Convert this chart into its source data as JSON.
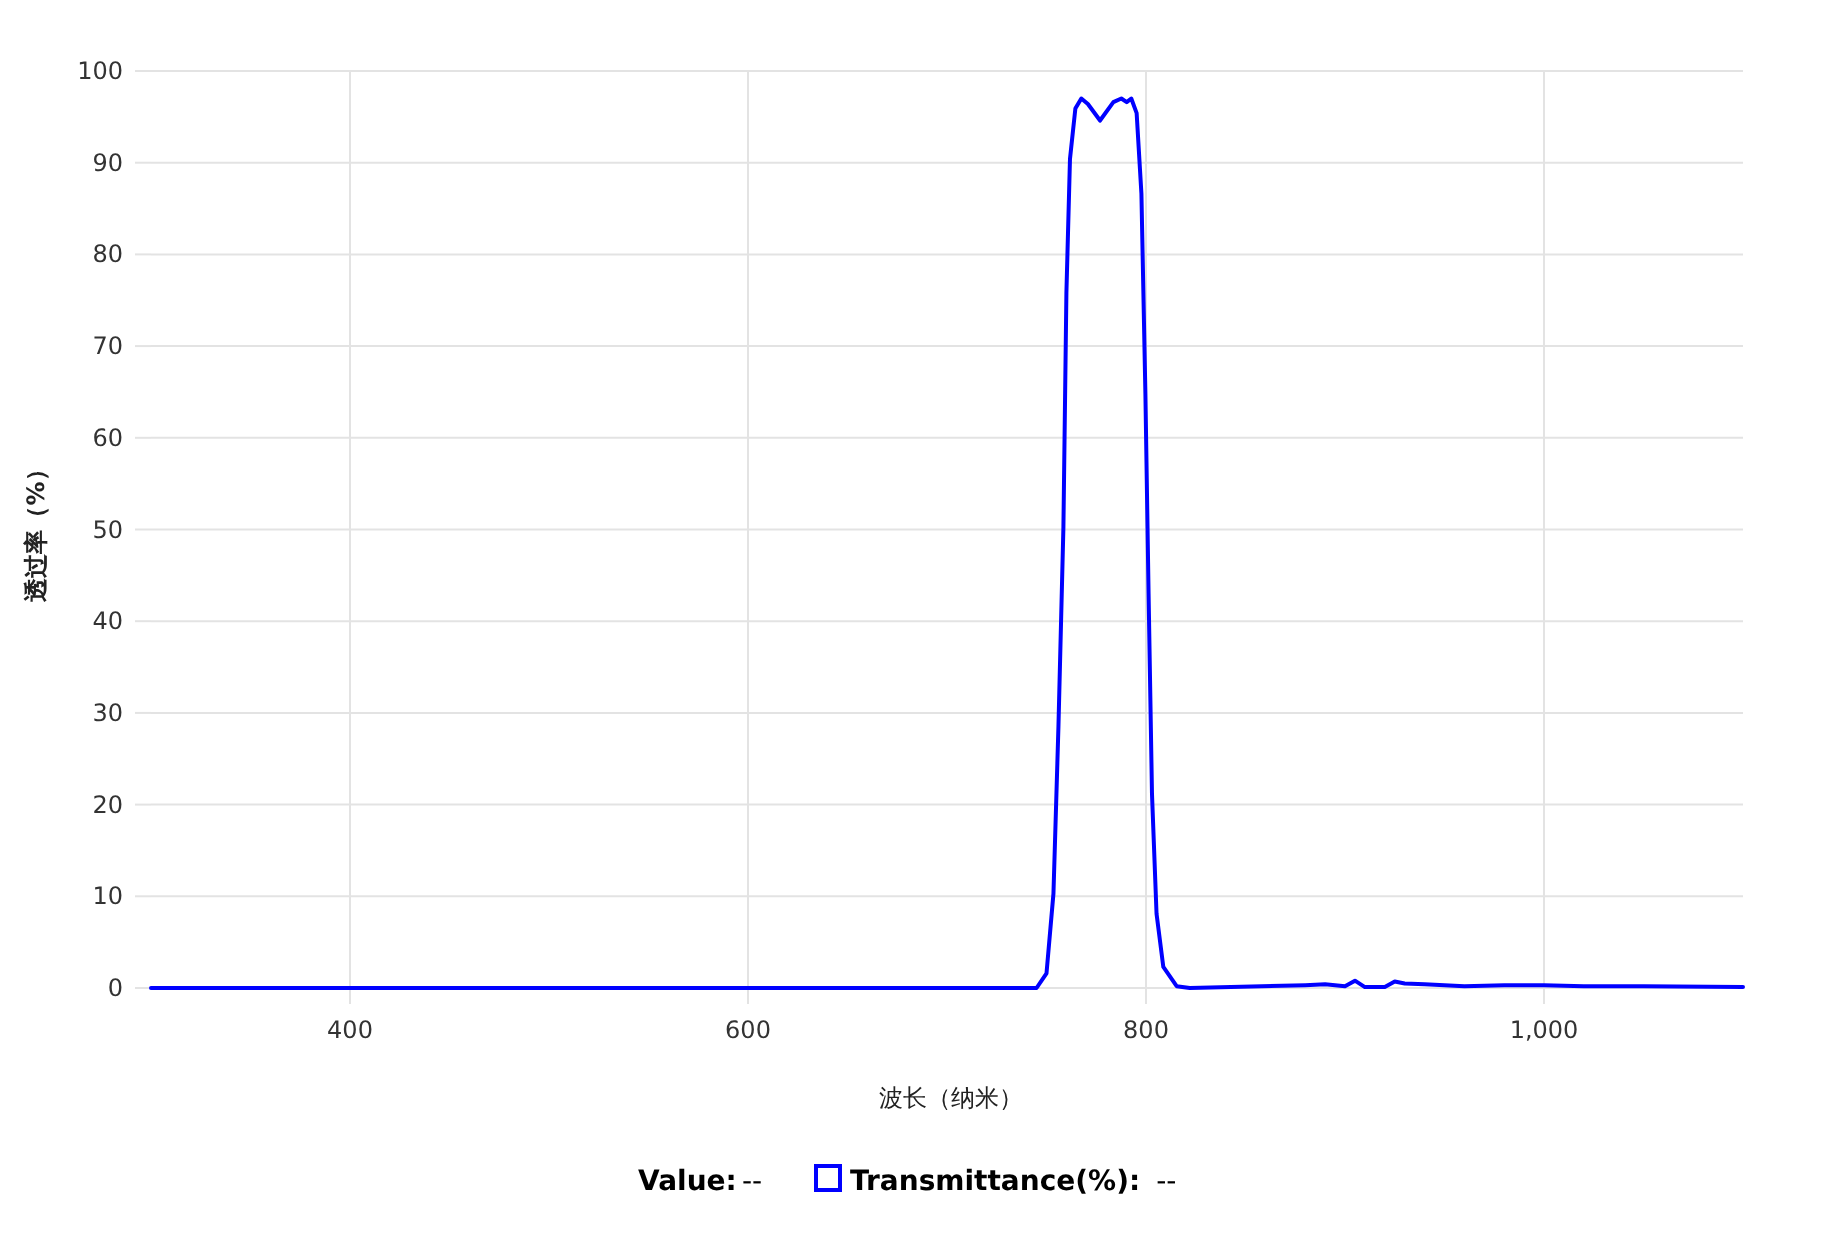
{
  "chart_data": {
    "type": "line",
    "xlabel": "波长（纳米）",
    "ylabel": "透过率（%）",
    "x": [
      300,
      745,
      750,
      753.5,
      756,
      758.5,
      760,
      761.8,
      764.5,
      767.5,
      770.8,
      776.9,
      783.6,
      787.6,
      790.3,
      792.6,
      795.3,
      797.7,
      799.7,
      801.3,
      803,
      805.3,
      808.7,
      815.4,
      822,
      880,
      890,
      900,
      905,
      910,
      920,
      925,
      930,
      940,
      960,
      980,
      1000,
      1020,
      1050,
      1100
    ],
    "series": [
      {
        "name": "Transmittance(%):",
        "color": "#0000ff",
        "values": [
          0,
          0,
          1.6,
          10.3,
          28.5,
          50.3,
          75.8,
          90.4,
          95.9,
          97,
          96.4,
          94.6,
          96.6,
          97,
          96.6,
          97,
          95.4,
          86.6,
          64.8,
          43,
          21.2,
          8.1,
          2.3,
          0.2,
          0,
          0.3,
          0.4,
          0.2,
          0.8,
          0.1,
          0.1,
          0.7,
          0.5,
          0.4,
          0.2,
          0.3,
          0.3,
          0.2,
          0.2,
          0.1
        ]
      }
    ],
    "xlim": [
      300,
      1100
    ],
    "xticks": [
      400,
      600,
      800,
      {
        "value": 1000,
        "label": "1,000"
      }
    ],
    "ylim": [
      0,
      100
    ],
    "yticks": [
      0,
      10,
      20,
      30,
      40,
      50,
      60,
      70,
      80,
      90,
      100
    ],
    "grid": true,
    "legend": "bottom",
    "marker": "none",
    "line_style": "solid",
    "annotations": [
      "Value:",
      "--",
      "--"
    ]
  }
}
